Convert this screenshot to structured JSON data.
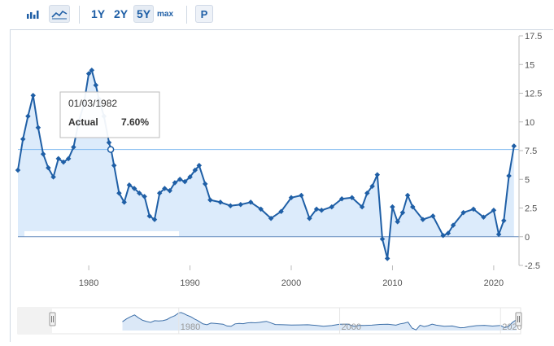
{
  "toolbar": {
    "bar_icon": "bar-chart-icon",
    "line_icon": "line-chart-icon",
    "ranges": [
      "1Y",
      "2Y",
      "5Y",
      "max"
    ],
    "active_range": "5Y",
    "p_label": "P"
  },
  "tooltip": {
    "date": "01/03/1982",
    "label": "Actual",
    "value": "7.60%"
  },
  "colors": {
    "line": "#1f5fa6",
    "area": "#d6e8fa",
    "crosshair": "#7fb9f0",
    "axis": "#999999"
  },
  "chart_data": {
    "type": "line",
    "title": "",
    "xlabel": "",
    "ylabel": "",
    "xlim": [
      1973,
      2022.5
    ],
    "ylim": [
      -2.5,
      17.5
    ],
    "yticks": [
      "-2.5",
      "0",
      "2.5",
      "5",
      "7.5",
      "10",
      "12.5",
      "15",
      "17.5"
    ],
    "yticks_num": [
      -2.5,
      0,
      2.5,
      5,
      7.5,
      10,
      12.5,
      15,
      17.5
    ],
    "xticks": [
      "1980",
      "1990",
      "2000",
      "2010",
      "2020"
    ],
    "xticks_num": [
      1980,
      1990,
      2000,
      2010,
      2020
    ],
    "grid": false,
    "highlight": {
      "x": 1982.17,
      "y": 7.6
    },
    "series": [
      {
        "x": [
          1973.0,
          1973.5,
          1974.0,
          1974.5,
          1975.0,
          1975.5,
          1976.0,
          1976.5,
          1977.0,
          1977.5,
          1978.0,
          1978.5,
          1979.0,
          1979.5,
          1980.0,
          1980.3,
          1980.7,
          1981.0,
          1981.5,
          1982.0,
          1982.2,
          1982.5,
          1983.0,
          1983.5,
          1984.0,
          1984.5,
          1985.0,
          1985.5,
          1986.0,
          1986.5,
          1987.0,
          1987.5,
          1988.0,
          1988.5,
          1989.0,
          1989.5,
          1990.0,
          1990.5,
          1990.9,
          1991.5,
          1992.0,
          1993.0,
          1994.0,
          1995.0,
          1996.0,
          1997.0,
          1998.0,
          1999.0,
          2000.0,
          2001.0,
          2001.8,
          2002.5,
          2003.0,
          2004.0,
          2005.0,
          2006.0,
          2007.0,
          2007.5,
          2008.0,
          2008.5,
          2009.0,
          2009.5,
          2010.0,
          2010.5,
          2011.0,
          2011.5,
          2012.0,
          2013.0,
          2014.0,
          2015.0,
          2015.5,
          2016.0,
          2017.0,
          2018.0,
          2019.0,
          2020.0,
          2020.5,
          2021.0,
          2021.5,
          2022.0
        ],
        "values": [
          5.8,
          8.5,
          10.5,
          12.3,
          9.5,
          7.2,
          6.0,
          5.2,
          6.8,
          6.5,
          6.8,
          7.8,
          10.0,
          11.5,
          14.2,
          14.5,
          13.2,
          12.0,
          10.5,
          8.2,
          7.6,
          6.2,
          3.8,
          3.0,
          4.5,
          4.2,
          3.8,
          3.5,
          1.8,
          1.5,
          3.8,
          4.2,
          4.0,
          4.7,
          5.0,
          4.8,
          5.2,
          5.8,
          6.2,
          4.6,
          3.2,
          3.0,
          2.7,
          2.8,
          3.0,
          2.4,
          1.6,
          2.2,
          3.4,
          3.6,
          1.6,
          2.4,
          2.3,
          2.6,
          3.3,
          3.4,
          2.6,
          3.8,
          4.4,
          5.4,
          -0.2,
          -1.9,
          2.6,
          1.3,
          2.1,
          3.6,
          2.6,
          1.5,
          1.8,
          0.1,
          0.3,
          1.0,
          2.1,
          2.4,
          1.7,
          2.3,
          0.2,
          1.4,
          5.3,
          7.9
        ]
      }
    ]
  },
  "navigator": {
    "ticks": [
      "1980",
      "2000",
      "2020"
    ],
    "ticks_num": [
      1980,
      2000,
      2020
    ],
    "xlim": [
      1960,
      2022.5
    ]
  }
}
